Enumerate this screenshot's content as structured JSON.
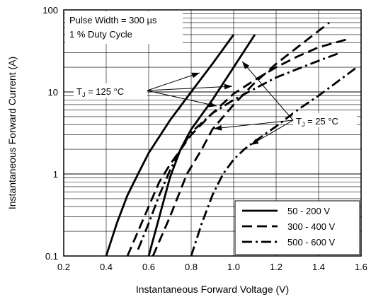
{
  "chart_data": {
    "type": "line",
    "xlabel": "Instantaneous Forward Voltage (V)",
    "ylabel": "Instantaneous Forward Current (A)",
    "xlim": [
      0.2,
      1.6
    ],
    "ylim": [
      0.1,
      100
    ],
    "yscale": "log",
    "x_ticks": [
      "0.2",
      "0.4",
      "0.6",
      "0.8",
      "1.0",
      "1.2",
      "1.4",
      "1.6"
    ],
    "y_ticks": [
      "0.1",
      "1",
      "10",
      "100"
    ],
    "grid": true,
    "legend_position": "bottom-right",
    "annotations": {
      "conditions_line1": "Pulse Width = 300 µs",
      "conditions_line2": "1 % Duty Cycle",
      "tj_hot": "T",
      "tj_hot_sub": "J",
      "tj_hot_value": " = 125 °C",
      "tj_cold": "T",
      "tj_cold_sub": "J",
      "tj_cold_value": " = 25 °C"
    },
    "series": [
      {
        "name": "50 - 200 V",
        "dash": "solid",
        "temperature": "125 °C",
        "x": [
          0.4,
          0.45,
          0.5,
          0.55,
          0.6,
          0.7,
          0.8,
          0.9,
          1.0
        ],
        "y": [
          0.1,
          0.25,
          0.55,
          1.0,
          1.8,
          4.5,
          10,
          22,
          50
        ]
      },
      {
        "name": "50 - 200 V",
        "dash": "solid",
        "temperature": "25 °C",
        "x": [
          0.6,
          0.65,
          0.7,
          0.75,
          0.8,
          0.9,
          1.0,
          1.1
        ],
        "y": [
          0.1,
          0.3,
          0.9,
          2.0,
          3.5,
          8,
          20,
          50
        ]
      },
      {
        "name": "300 - 400 V",
        "dash": "dash",
        "temperature": "125 °C",
        "x": [
          0.5,
          0.55,
          0.6,
          0.65,
          0.7,
          0.8,
          0.9,
          1.0,
          1.1,
          1.2,
          1.3,
          1.4,
          1.55
        ],
        "y": [
          0.1,
          0.2,
          0.4,
          0.8,
          1.3,
          3.0,
          5.5,
          9.5,
          14,
          20,
          27,
          35,
          45
        ]
      },
      {
        "name": "300 - 400 V",
        "dash": "dash",
        "temperature": "25 °C",
        "x": [
          0.62,
          0.7,
          0.78,
          0.85,
          0.9,
          1.0,
          1.1,
          1.2,
          1.3,
          1.45
        ],
        "y": [
          0.1,
          0.3,
          1.0,
          2.0,
          3.5,
          7,
          13,
          22,
          35,
          70
        ]
      },
      {
        "name": "500 - 600 V",
        "dash": "dashdot",
        "temperature": "125 °C",
        "x": [
          0.55,
          0.6,
          0.65,
          0.7,
          0.75,
          0.8,
          0.9,
          1.0,
          1.1,
          1.2,
          1.3,
          1.4,
          1.5
        ],
        "y": [
          0.12,
          0.25,
          0.55,
          1.1,
          2.0,
          3.2,
          5.5,
          8,
          11,
          15,
          19,
          24,
          30
        ]
      },
      {
        "name": "500 - 600 V",
        "dash": "dashdot",
        "temperature": "25 °C",
        "x": [
          0.8,
          0.85,
          0.9,
          0.95,
          1.0,
          1.05,
          1.1,
          1.2,
          1.3,
          1.4,
          1.5,
          1.58
        ],
        "y": [
          0.1,
          0.25,
          0.55,
          1.0,
          1.5,
          2.0,
          2.5,
          3.8,
          6,
          9,
          14,
          20
        ]
      }
    ],
    "legend": [
      {
        "label": "50 - 200 V",
        "dash": "solid"
      },
      {
        "label": "300 - 400 V",
        "dash": "dash"
      },
      {
        "label": "500 - 600 V",
        "dash": "dashdot"
      }
    ]
  }
}
